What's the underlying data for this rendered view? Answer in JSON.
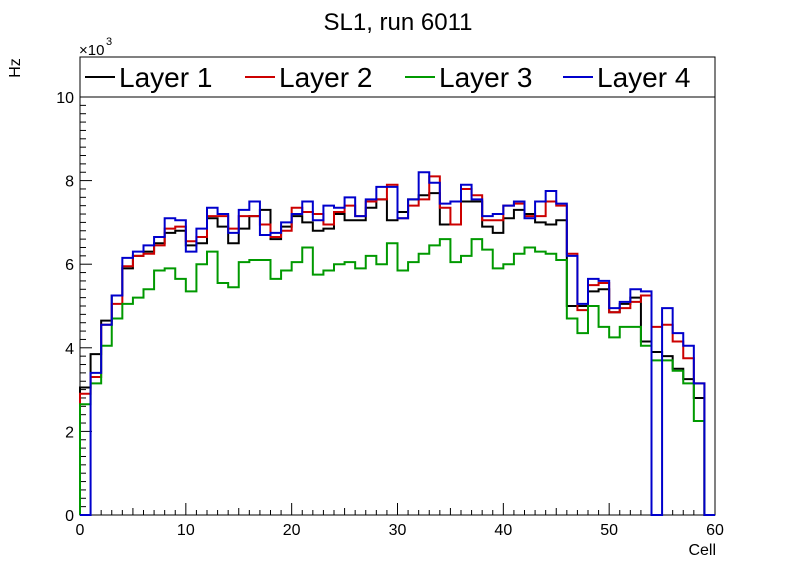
{
  "chart_data": {
    "type": "line",
    "title": "SL1, run 6011",
    "xlabel": "Cell",
    "ylabel": "Hz",
    "y_multiplier_label": "×10",
    "y_multiplier_exp": "3",
    "xlim": [
      0,
      60
    ],
    "ylim": [
      0,
      10
    ],
    "x_ticks": [
      0,
      10,
      20,
      30,
      40,
      50,
      60
    ],
    "y_ticks": [
      0,
      2,
      4,
      6,
      8,
      10
    ],
    "bin_edges_start": 0,
    "bin_width": 1,
    "series": [
      {
        "name": "Layer 1",
        "color": "#000000",
        "values": [
          3.05,
          3.85,
          4.65,
          5.25,
          5.9,
          6.2,
          6.3,
          6.5,
          6.75,
          6.8,
          6.45,
          6.5,
          7.1,
          6.9,
          6.5,
          6.85,
          7.15,
          7.3,
          6.6,
          6.9,
          7.15,
          7.0,
          6.8,
          6.85,
          7.2,
          7.05,
          7.05,
          7.35,
          7.55,
          7.05,
          7.25,
          7.55,
          7.65,
          7.7,
          6.95,
          6.95,
          7.5,
          7.5,
          6.9,
          6.75,
          7.1,
          7.3,
          7.2,
          7.0,
          6.95,
          7.05,
          5.0,
          5.0,
          5.35,
          5.4,
          4.85,
          5.05,
          5.2,
          4.15,
          3.9,
          3.8,
          3.5,
          3.25,
          2.8,
          0.0
        ]
      },
      {
        "name": "Layer 2",
        "color": "#cc0000",
        "values": [
          2.9,
          3.3,
          4.55,
          5.05,
          5.95,
          6.2,
          6.25,
          6.45,
          6.85,
          6.9,
          6.55,
          6.65,
          7.15,
          7.15,
          6.85,
          7.15,
          7.15,
          6.95,
          6.65,
          6.8,
          7.35,
          7.25,
          7.2,
          6.95,
          7.25,
          7.4,
          7.15,
          7.5,
          7.55,
          7.9,
          7.1,
          7.4,
          7.55,
          8.1,
          7.35,
          6.95,
          7.8,
          7.65,
          7.05,
          7.05,
          7.4,
          7.45,
          7.15,
          7.15,
          7.5,
          7.4,
          6.25,
          4.9,
          5.5,
          5.55,
          4.85,
          4.95,
          5.1,
          5.25,
          4.5,
          4.55,
          4.15,
          3.75,
          3.15,
          0.0
        ]
      },
      {
        "name": "Layer 3",
        "color": "#009900",
        "values": [
          2.65,
          3.15,
          4.05,
          4.7,
          5.05,
          5.2,
          5.4,
          5.85,
          5.9,
          5.65,
          5.35,
          6.0,
          6.3,
          5.55,
          5.45,
          6.05,
          6.1,
          6.1,
          5.65,
          5.85,
          6.05,
          6.4,
          5.75,
          5.85,
          6.0,
          6.05,
          5.9,
          6.2,
          6.0,
          6.5,
          5.85,
          6.05,
          6.25,
          6.45,
          6.6,
          6.05,
          6.2,
          6.6,
          6.35,
          5.9,
          6.0,
          6.25,
          6.4,
          6.3,
          6.25,
          6.1,
          4.7,
          4.35,
          5.0,
          4.5,
          4.25,
          4.5,
          4.5,
          4.05,
          3.7,
          3.7,
          3.45,
          3.15,
          2.25,
          0.0
        ]
      },
      {
        "name": "Layer 4",
        "color": "#0000cc",
        "values": [
          0.0,
          3.4,
          4.55,
          5.25,
          6.15,
          6.3,
          6.45,
          6.65,
          7.1,
          7.05,
          6.3,
          6.85,
          7.35,
          7.2,
          6.75,
          7.3,
          7.5,
          6.7,
          6.75,
          7.0,
          7.2,
          7.5,
          7.05,
          7.4,
          7.35,
          7.6,
          7.15,
          7.55,
          7.85,
          7.85,
          7.1,
          7.55,
          8.2,
          7.95,
          7.45,
          7.5,
          7.9,
          7.55,
          7.15,
          7.2,
          7.4,
          7.5,
          7.1,
          7.5,
          7.75,
          7.45,
          6.2,
          5.05,
          5.65,
          5.6,
          4.95,
          5.1,
          5.4,
          5.35,
          0.0,
          4.95,
          4.35,
          4.05,
          3.15,
          0.0
        ]
      }
    ],
    "legend_position": "top, above plot frame"
  }
}
